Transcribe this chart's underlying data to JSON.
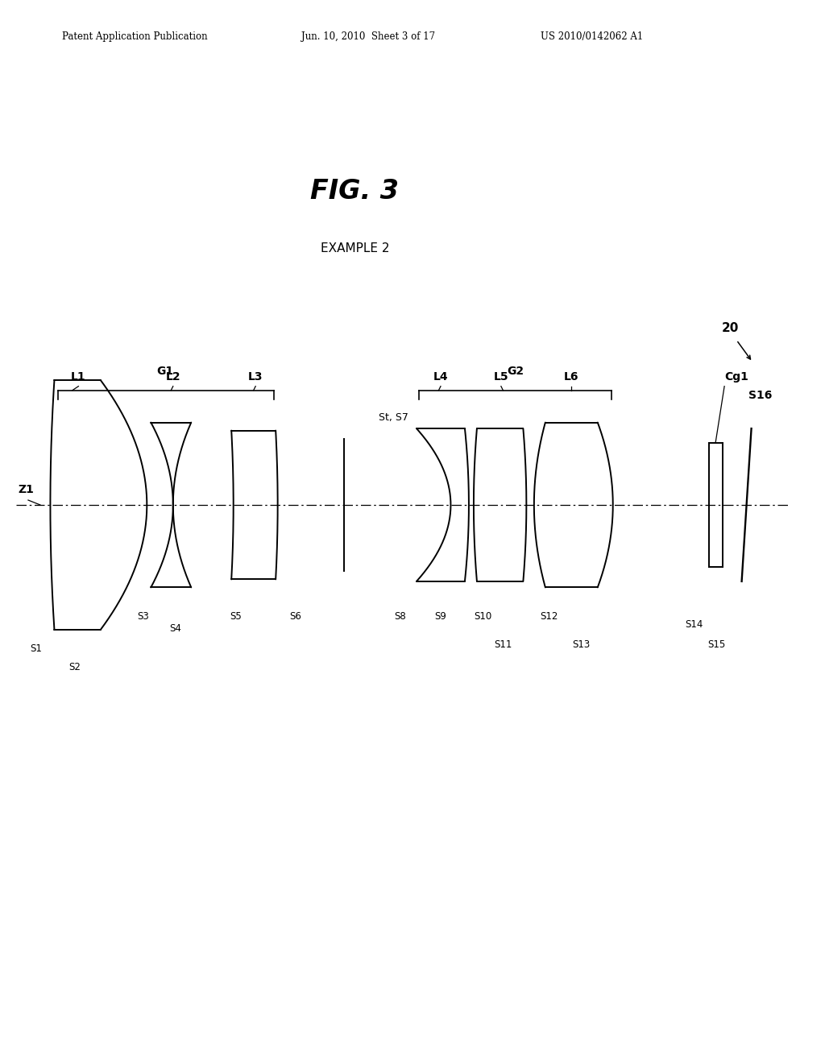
{
  "title": "FIG. 3",
  "subtitle": "EXAMPLE 2",
  "header_left": "Patent Application Publication",
  "header_center": "Jun. 10, 2010  Sheet 3 of 17",
  "header_right": "US 2010/0142062 A1",
  "bg_color": "#ffffff",
  "text_color": "#000000",
  "line_color": "#000000",
  "lw": 1.4
}
